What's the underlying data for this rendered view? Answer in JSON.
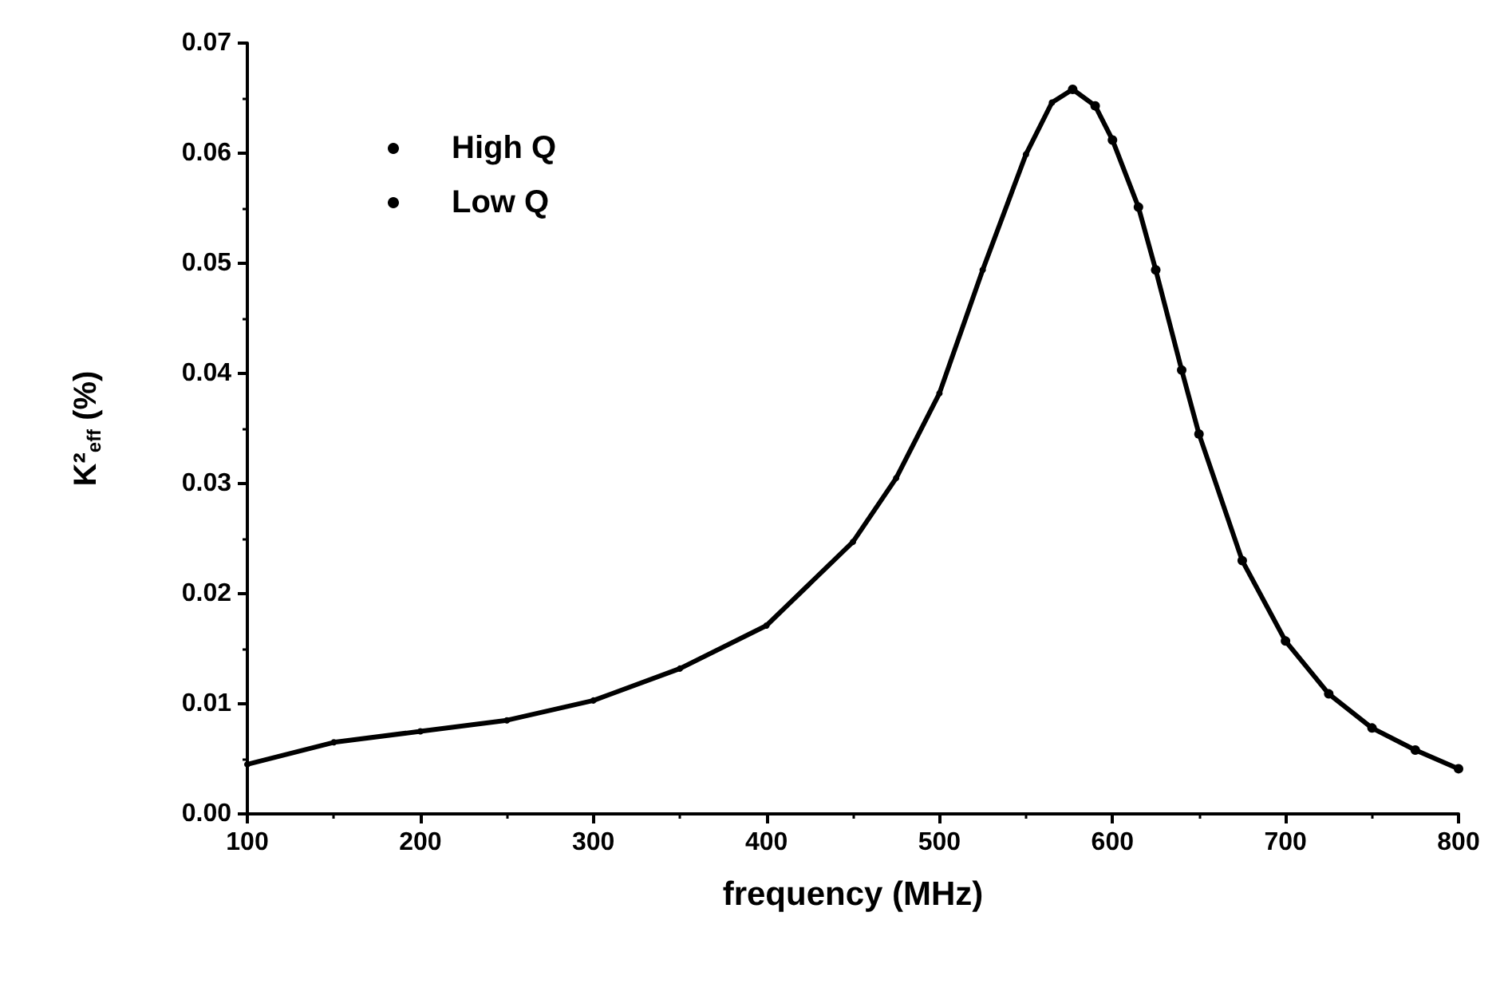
{
  "chart_data": {
    "type": "line",
    "xlabel": "frequency (MHz)",
    "ylabel": "K²$_{eff}$ (%)",
    "series": [
      {
        "name": "High Q",
        "color": "#000000",
        "marker": "circle",
        "x": [
          100,
          150,
          200,
          250,
          300,
          350,
          400,
          450,
          475,
          500,
          525,
          550,
          565,
          577
        ],
        "values": [
          0.0045,
          0.0065,
          0.0075,
          0.0085,
          0.0103,
          0.0132,
          0.0171,
          0.0247,
          0.0305,
          0.0382,
          0.0494,
          0.0599,
          0.0646,
          0.0658
        ]
      },
      {
        "name": "Low Q",
        "color": "#000000",
        "marker": "circle",
        "x": [
          577,
          590,
          600,
          615,
          625,
          640,
          650,
          675,
          700,
          725,
          750,
          775,
          800
        ],
        "values": [
          0.0658,
          0.0643,
          0.0612,
          0.0551,
          0.0494,
          0.0403,
          0.0345,
          0.023,
          0.0157,
          0.0109,
          0.0078,
          0.0058,
          0.0041
        ]
      }
    ],
    "xlim": [
      100,
      800
    ],
    "xticks": [
      100,
      200,
      300,
      400,
      500,
      600,
      700,
      800
    ],
    "ylim": [
      0,
      0.07
    ],
    "yticks": [
      {
        "value": 0,
        "label": "0.00"
      },
      {
        "value": 0.01,
        "label": "0.01"
      },
      {
        "value": 0.02,
        "label": "0.02"
      },
      {
        "value": 0.03,
        "label": "0.03"
      },
      {
        "value": 0.04,
        "label": "0.04"
      },
      {
        "value": 0.05,
        "label": "0.05"
      },
      {
        "value": 0.06,
        "label": "0.06"
      },
      {
        "value": 0.07,
        "label": "0.07"
      }
    ],
    "grid": false,
    "legend": "top left"
  }
}
